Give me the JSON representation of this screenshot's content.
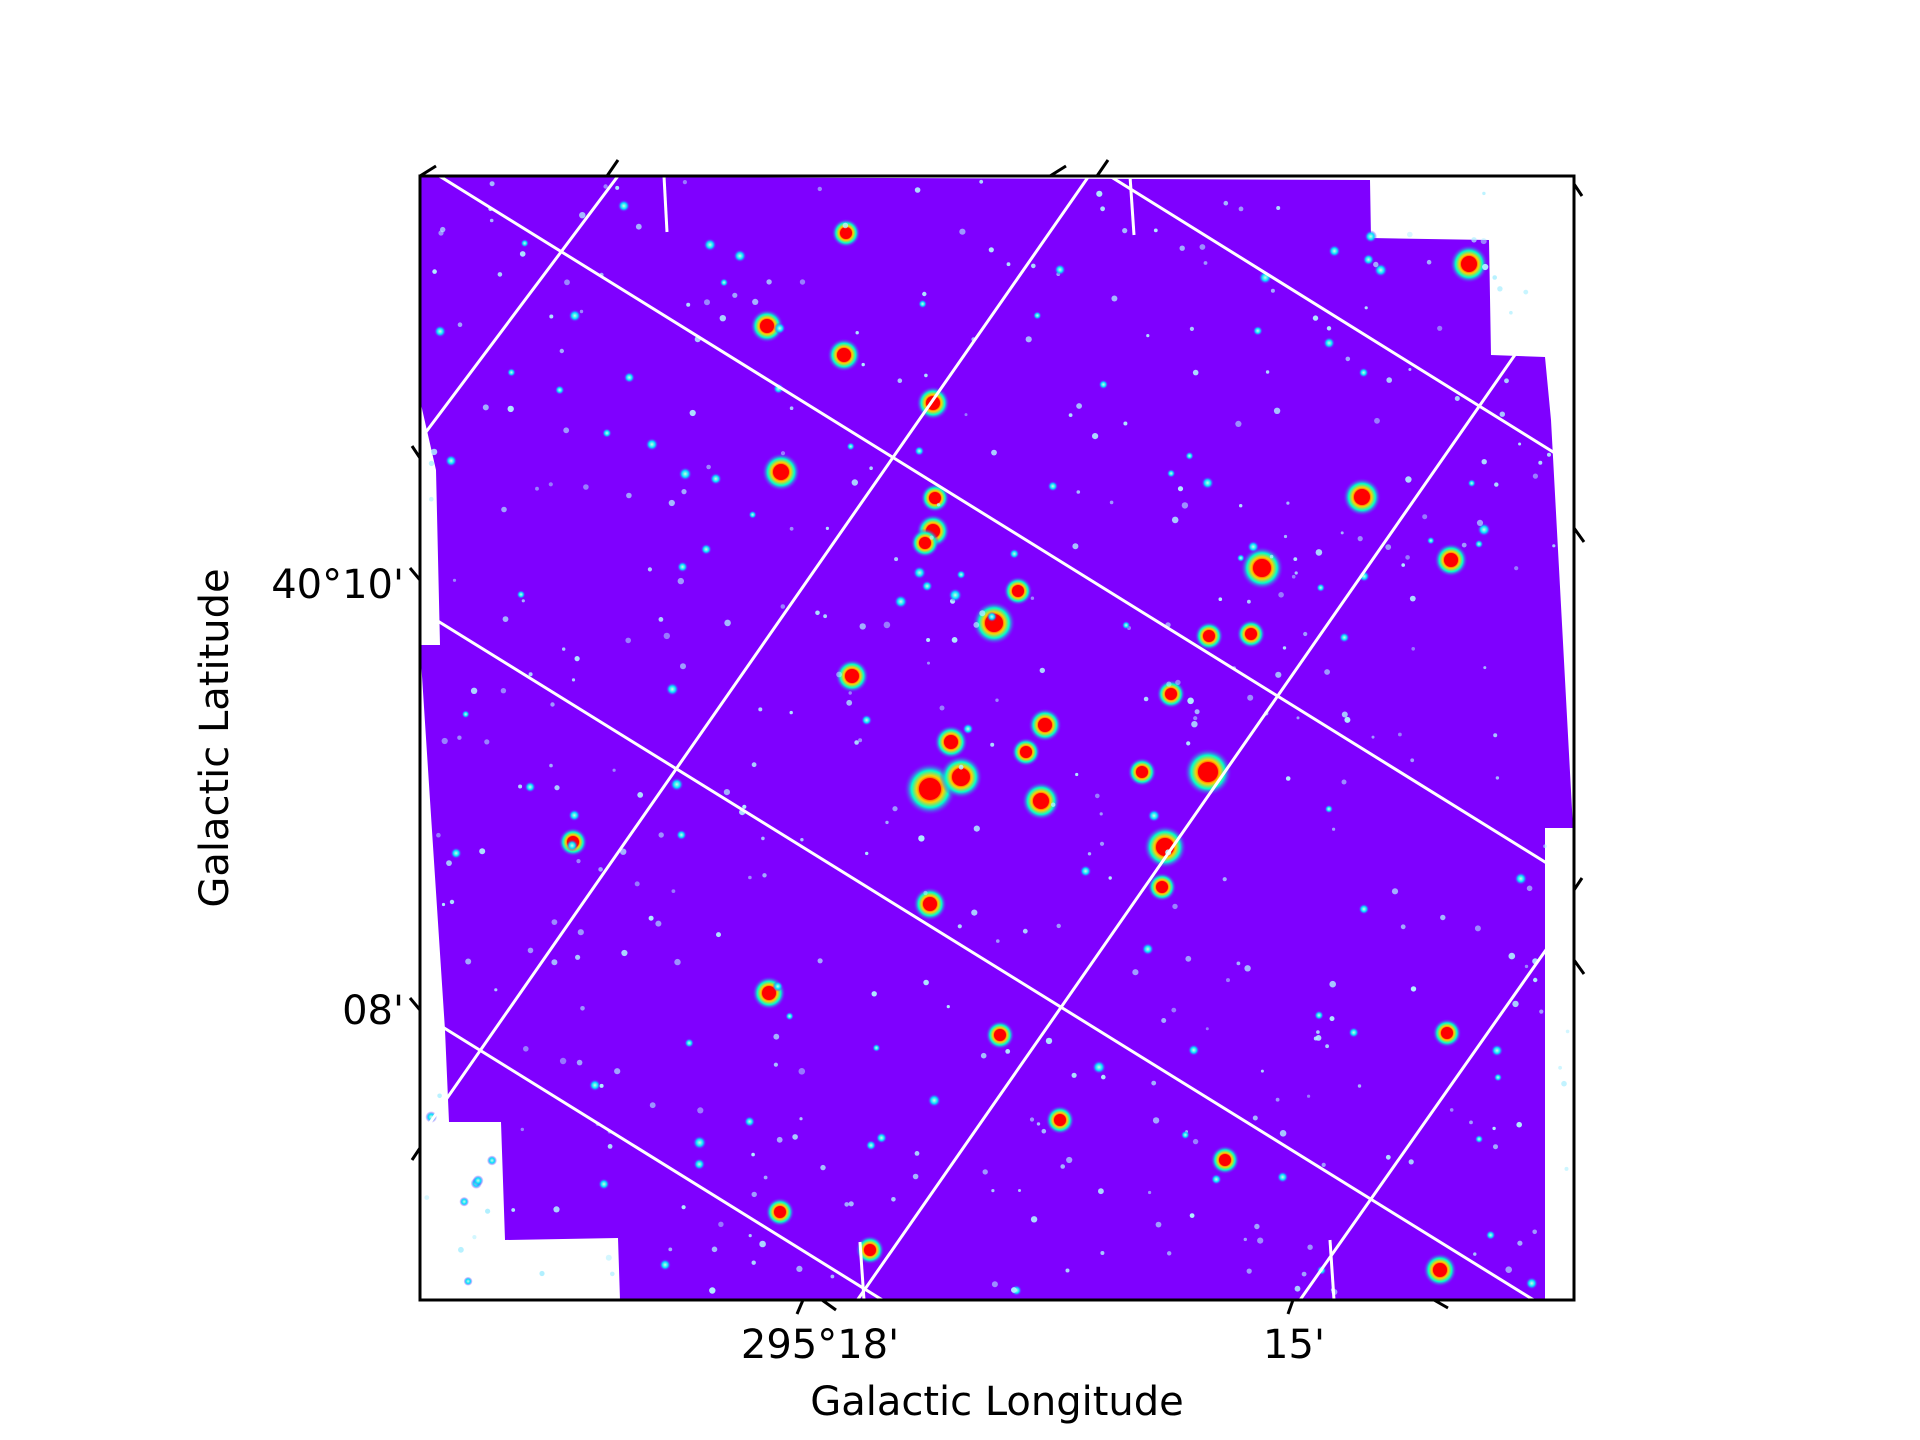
{
  "figure": {
    "xlabel": "Galactic Longitude",
    "ylabel": "Galactic Latitude",
    "x_ticks": [
      "295°18'",
      "15'"
    ],
    "y_ticks": [
      "40°10'",
      "08'"
    ]
  },
  "colors": {
    "background": "#7f00ff",
    "grid": "#ffffff",
    "star_core": "#ff0000",
    "star_halo": "#00ffff",
    "frame": "#000000"
  }
}
